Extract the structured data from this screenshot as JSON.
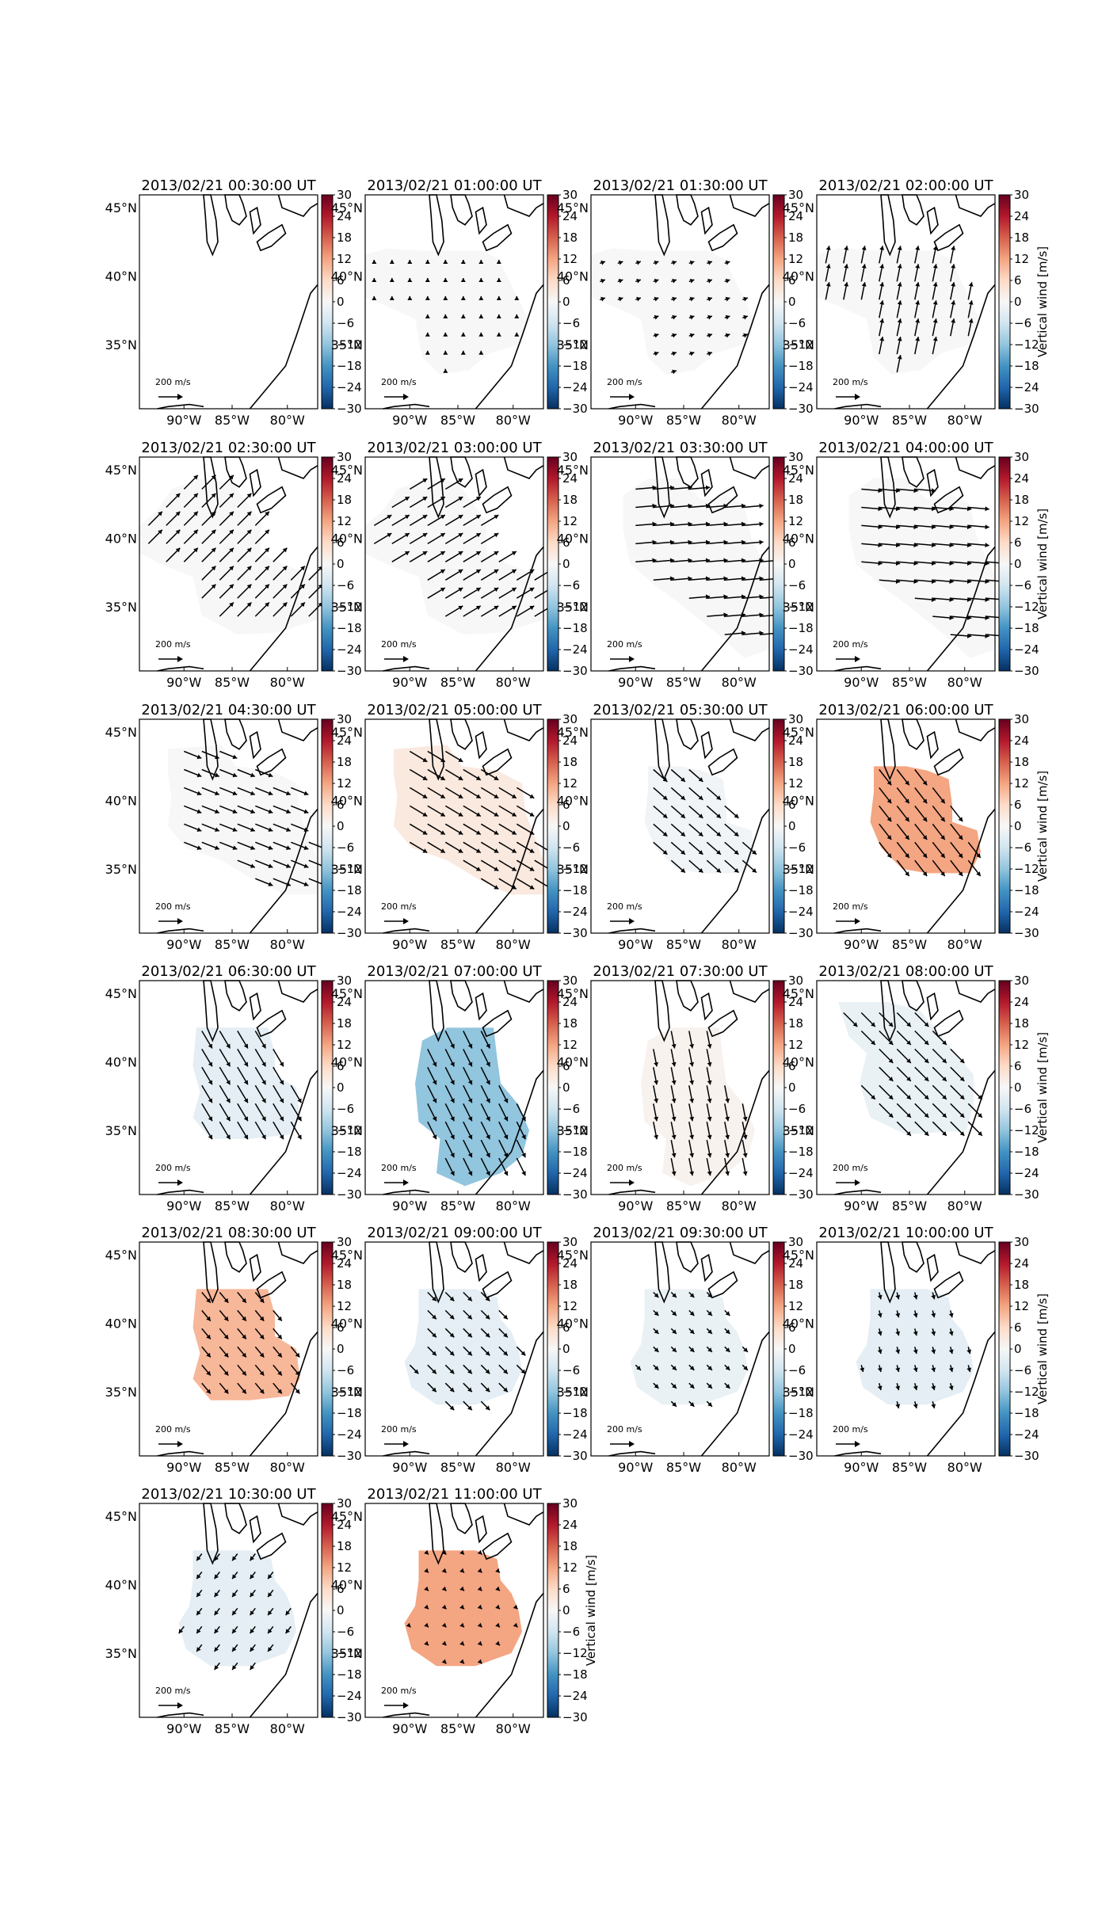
{
  "figure": {
    "colorbar_ticks": [
      "30",
      "24",
      "18",
      "12",
      "6",
      "0",
      "−6",
      "−12",
      "−18",
      "−24",
      "−30"
    ],
    "colorbar_label": "Vertical wind [m/s]",
    "colorbar_colors": [
      "#67001f",
      "#b2182b",
      "#d6604d",
      "#f4a582",
      "#fddbc7",
      "#f7f7f7",
      "#d1e5f0",
      "#92c5de",
      "#4393c3",
      "#2166ac",
      "#053061"
    ],
    "lat_ticks": [
      "45°N",
      "40°N",
      "35°N"
    ],
    "lon_ticks": [
      "90°W",
      "85°W",
      "80°W"
    ],
    "scale_label": "200 m/s"
  },
  "chart_data": {
    "type": "heatmap",
    "description_unit": "Vertical wind [m/s]",
    "vmin": -30,
    "vmax": 30,
    "panels": [
      {
        "title": "2013/02/21 00:30:00 UT",
        "value": 0,
        "shape": "none",
        "vec": [
          0,
          0
        ],
        "cbar_label": false
      },
      {
        "title": "2013/02/21 01:00:00 UT",
        "value": 0,
        "shape": "A",
        "vec": [
          0,
          0.2
        ],
        "cbar_label": false
      },
      {
        "title": "2013/02/21 01:30:00 UT",
        "value": 0,
        "shape": "A",
        "vec": [
          0.3,
          0.1
        ],
        "cbar_label": false
      },
      {
        "title": "2013/02/21 02:00:00 UT",
        "value": 0,
        "shape": "A",
        "vec": [
          0.2,
          1.0
        ],
        "cbar_label": true
      },
      {
        "title": "2013/02/21 02:30:00 UT",
        "value": 0,
        "shape": "B",
        "vec": [
          0.8,
          0.8
        ],
        "cbar_label": false
      },
      {
        "title": "2013/02/21 03:00:00 UT",
        "value": 0,
        "shape": "B",
        "vec": [
          1.0,
          0.6
        ],
        "cbar_label": false
      },
      {
        "title": "2013/02/21 03:30:00 UT",
        "value": 0,
        "shape": "C",
        "vec": [
          1.2,
          0.1
        ],
        "cbar_label": false
      },
      {
        "title": "2013/02/21 04:00:00 UT",
        "value": 0,
        "shape": "C",
        "vec": [
          1.2,
          -0.1
        ],
        "cbar_label": true
      },
      {
        "title": "2013/02/21 04:30:00 UT",
        "value": 0,
        "shape": "D",
        "vec": [
          1.0,
          -0.4
        ],
        "cbar_label": false
      },
      {
        "title": "2013/02/21 05:00:00 UT",
        "value": 3,
        "shape": "D",
        "vec": [
          1.0,
          -0.6
        ],
        "cbar_label": false
      },
      {
        "title": "2013/02/21 05:30:00 UT",
        "value": -1,
        "shape": "E",
        "vec": [
          0.8,
          -0.7
        ],
        "cbar_label": false
      },
      {
        "title": "2013/02/21 06:00:00 UT",
        "value": 12,
        "shape": "E",
        "vec": [
          0.7,
          -0.9
        ],
        "cbar_label": true
      },
      {
        "title": "2013/02/21 06:30:00 UT",
        "value": -3,
        "shape": "F",
        "vec": [
          0.6,
          -1.0
        ],
        "cbar_label": false
      },
      {
        "title": "2013/02/21 07:00:00 UT",
        "value": -12,
        "shape": "G",
        "vec": [
          0.5,
          -1.0
        ],
        "cbar_label": false
      },
      {
        "title": "2013/02/21 07:30:00 UT",
        "value": 1,
        "shape": "G",
        "vec": [
          0.2,
          -1.0
        ],
        "cbar_label": false
      },
      {
        "title": "2013/02/21 08:00:00 UT",
        "value": -2,
        "shape": "H",
        "vec": [
          0.8,
          -0.8
        ],
        "cbar_label": true
      },
      {
        "title": "2013/02/21 08:30:00 UT",
        "value": 10,
        "shape": "F",
        "vec": [
          0.5,
          -0.6
        ],
        "cbar_label": false
      },
      {
        "title": "2013/02/21 09:00:00 UT",
        "value": -3,
        "shape": "I",
        "vec": [
          0.5,
          -0.5
        ],
        "cbar_label": false
      },
      {
        "title": "2013/02/21 09:30:00 UT",
        "value": -2,
        "shape": "I",
        "vec": [
          0.3,
          -0.3
        ],
        "cbar_label": false
      },
      {
        "title": "2013/02/21 10:00:00 UT",
        "value": -3,
        "shape": "I",
        "vec": [
          0.1,
          -0.4
        ],
        "cbar_label": true
      },
      {
        "title": "2013/02/21 10:30:00 UT",
        "value": -3,
        "shape": "I",
        "vec": [
          -0.3,
          -0.4
        ],
        "cbar_label": false
      },
      {
        "title": "2013/02/21 11:00:00 UT",
        "value": 12,
        "shape": "I",
        "vec": [
          0.05,
          -0.05
        ],
        "cbar_label": true
      }
    ]
  }
}
